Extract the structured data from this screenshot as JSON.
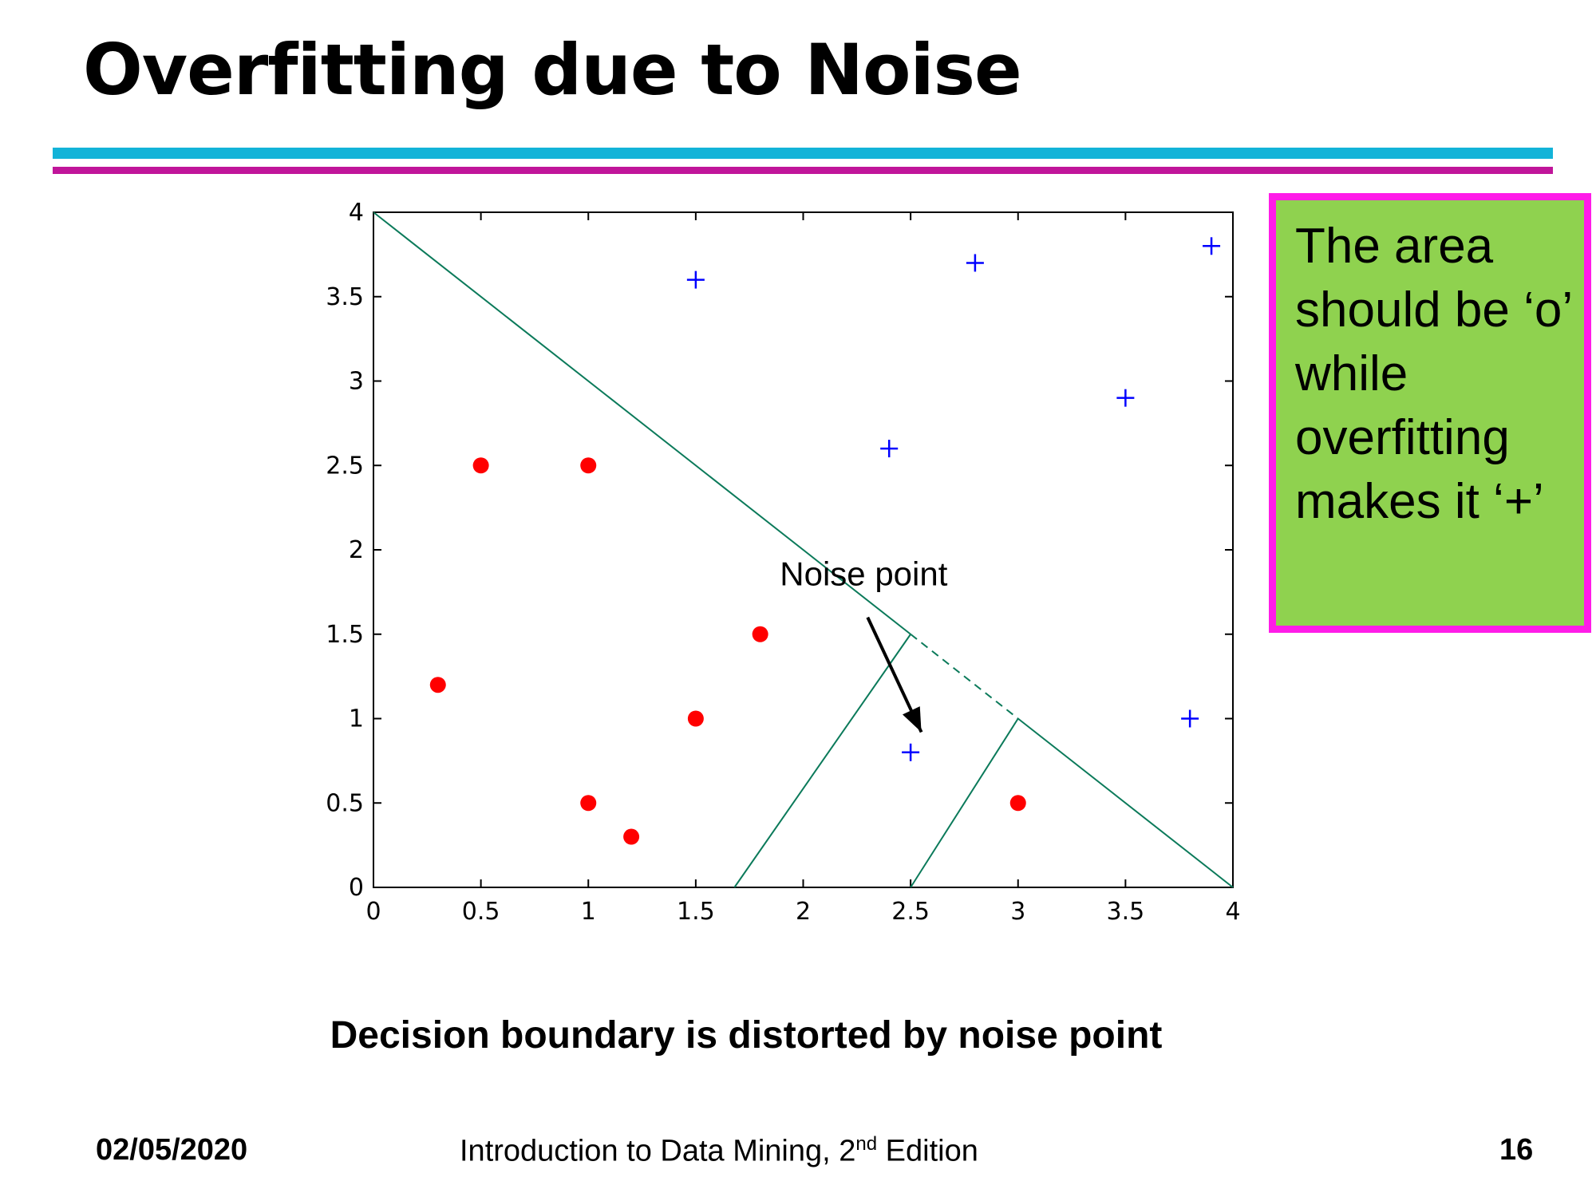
{
  "slide": {
    "title": "Overfitting due to Noise",
    "note": "The area should be ‘o’ while overfitting makes it ‘+’",
    "caption": "Decision boundary is distorted by noise point",
    "footer": {
      "date": "02/05/2020",
      "book_main": "Introduction to Data Mining, 2",
      "book_sup": "nd",
      "book_end": " Edition",
      "page": "16"
    }
  },
  "colors": {
    "rule_top": "#13b3d8",
    "rule_bottom": "#c0159a",
    "note_bg": "#8fd24f",
    "note_border": "#ff1ce8",
    "circle_class": "#ff0000",
    "plus_class": "#0000ff",
    "boundary": "#0b7a5a"
  },
  "chart_data": {
    "type": "scatter",
    "title": "",
    "xlabel": "",
    "ylabel": "",
    "xlim": [
      0,
      4
    ],
    "ylim": [
      0,
      4
    ],
    "xticks": [
      "0",
      "0.5",
      "1",
      "1.5",
      "2",
      "2.5",
      "3",
      "3.5",
      "4"
    ],
    "yticks": [
      "0",
      "0.5",
      "1",
      "1.5",
      "2",
      "2.5",
      "3",
      "3.5",
      "4"
    ],
    "grid": false,
    "series": [
      {
        "marker": "circle",
        "points": [
          [
            0.5,
            2.5
          ],
          [
            1,
            2.5
          ],
          [
            1.8,
            1.5
          ],
          [
            0.3,
            1.2
          ],
          [
            1.5,
            1.0
          ],
          [
            1,
            0.5
          ],
          [
            1.2,
            0.3
          ],
          [
            3,
            0.5
          ]
        ]
      },
      {
        "marker": "plus",
        "points": [
          [
            1.5,
            3.6
          ],
          [
            2.8,
            3.7
          ],
          [
            3.9,
            3.8
          ],
          [
            3.5,
            2.9
          ],
          [
            2.4,
            2.6
          ],
          [
            3.8,
            1.0
          ],
          [
            2.5,
            0.8
          ]
        ]
      }
    ],
    "boundaries": [
      {
        "style": "solid",
        "points": [
          [
            0,
            4
          ],
          [
            2.5,
            1.5
          ]
        ]
      },
      {
        "style": "dashed",
        "points": [
          [
            2.5,
            1.5
          ],
          [
            3,
            1
          ]
        ]
      },
      {
        "style": "solid",
        "points": [
          [
            3,
            1
          ],
          [
            4,
            0
          ]
        ]
      },
      {
        "style": "solid",
        "points": [
          [
            2.5,
            1.5
          ],
          [
            1.68,
            0
          ]
        ]
      },
      {
        "style": "solid",
        "points": [
          [
            3,
            1
          ],
          [
            2.5,
            0
          ]
        ]
      }
    ],
    "annotation": {
      "text": "Noise point",
      "arrow_from": [
        2.3,
        1.6
      ],
      "arrow_to": [
        2.55,
        0.92
      ]
    }
  }
}
